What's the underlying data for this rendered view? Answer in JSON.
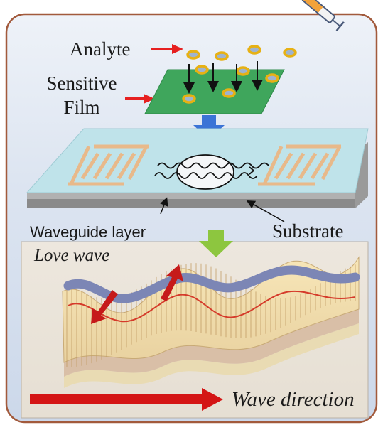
{
  "labels": {
    "analyte": "Analyte",
    "sensitive_film": "Sensitive Film",
    "waveguide_layer": "Waveguide layer",
    "substrate": "Substrate",
    "love_wave": "Love wave",
    "wave_direction": "Wave direction"
  },
  "colors": {
    "panel_background": "#dfe6f2",
    "frame": "#a25a3c",
    "sensitive_film": "#3fa65c",
    "analyte_ring": "#e7b114",
    "analyte_core": "#9fb3ce",
    "pointer_arrow": "#e62020",
    "flow_arrow_blue": "#3b74d6",
    "flow_arrow_green": "#8dc63f",
    "waveguide_top": "#bfe3ea",
    "substrate_side": "#8a8a8a",
    "electrode": "#e8b98a",
    "wave_band": "#7c86b5",
    "wave_line": "#d53a2a",
    "wave_fin": "#f4e2b4",
    "direction_arrow": "#d41515"
  },
  "icons": [
    "syringe-icon"
  ]
}
